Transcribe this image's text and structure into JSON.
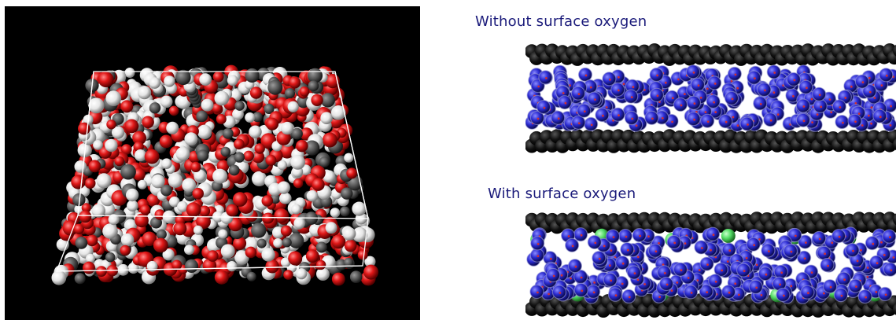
{
  "figure": {
    "left_panel": {
      "description_icon": "molecular-box-render"
    },
    "right_panel": {
      "top_caption": "Without surface oxygen",
      "bottom_caption": "With surface oxygen"
    }
  },
  "colors": {
    "background_left": "#000000",
    "background_right": "#ffffff",
    "caption_text": "#1a1a7a",
    "atom_oxygen": "#e01818",
    "atom_hydrogen": "#f2f2f2",
    "atom_carbon": "#555555",
    "wall_carbon": "#111111",
    "confined_molecule": "#2a2ad0",
    "surface_oxygen": "#55dd66",
    "box_outline": "#ffffff"
  }
}
